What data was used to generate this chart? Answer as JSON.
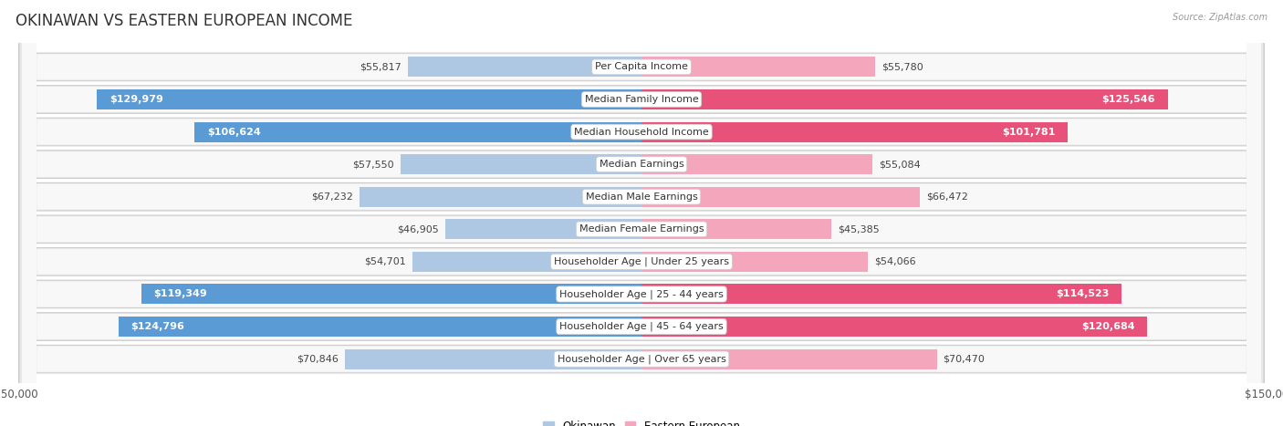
{
  "title": "OKINAWAN VS EASTERN EUROPEAN INCOME",
  "source": "Source: ZipAtlas.com",
  "categories": [
    "Per Capita Income",
    "Median Family Income",
    "Median Household Income",
    "Median Earnings",
    "Median Male Earnings",
    "Median Female Earnings",
    "Householder Age | Under 25 years",
    "Householder Age | 25 - 44 years",
    "Householder Age | 45 - 64 years",
    "Householder Age | Over 65 years"
  ],
  "okinawan": [
    55817,
    129979,
    106624,
    57550,
    67232,
    46905,
    54701,
    119349,
    124796,
    70846
  ],
  "eastern_european": [
    55780,
    125546,
    101781,
    55084,
    66472,
    45385,
    54066,
    114523,
    120684,
    70470
  ],
  "okinawan_labels": [
    "$55,817",
    "$129,979",
    "$106,624",
    "$57,550",
    "$67,232",
    "$46,905",
    "$54,701",
    "$119,349",
    "$124,796",
    "$70,846"
  ],
  "eastern_labels": [
    "$55,780",
    "$125,546",
    "$101,781",
    "$55,084",
    "$66,472",
    "$45,385",
    "$54,066",
    "$114,523",
    "$120,684",
    "$70,470"
  ],
  "okinawan_color_light": "#aec8e4",
  "okinawan_color_dark": "#5b9bd5",
  "eastern_color_light": "#f4a7bc",
  "eastern_color_dark": "#e8527a",
  "row_bg_color": "#e8e8e8",
  "max_value": 150000,
  "title_fontsize": 12,
  "label_fontsize": 8,
  "value_fontsize": 8,
  "axis_label_fontsize": 8.5,
  "background_color": "#ffffff",
  "threshold": 90000
}
